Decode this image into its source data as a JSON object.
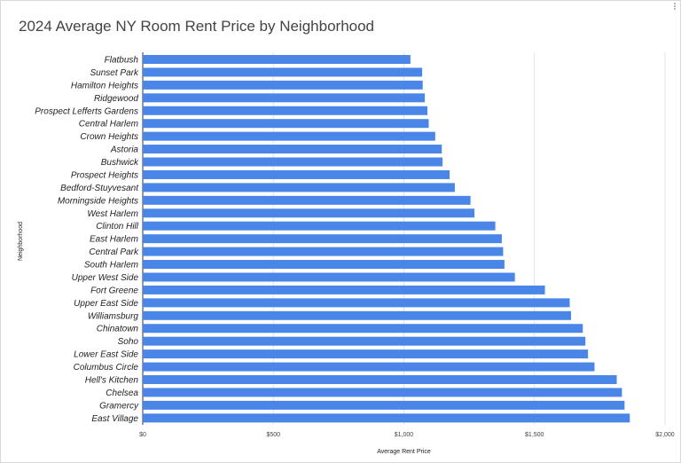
{
  "chart_data": {
    "type": "bar",
    "orientation": "horizontal",
    "title": "2024 Average NY Room Rent Price by Neighborhood",
    "xlabel": "Average Rent Price",
    "ylabel": "Neighborhood",
    "xlim": [
      0,
      2000
    ],
    "xticks": [
      0,
      500,
      1000,
      1500,
      2000
    ],
    "xtick_labels": [
      "$0",
      "$500",
      "$1,000",
      "$1,500",
      "$2,000"
    ],
    "grid": true,
    "legend": "none",
    "bar_color": "#4a86e8",
    "categories": [
      "Flatbush",
      "Sunset Park",
      "Hamilton Heights",
      "Ridgewood",
      "Prospect Lefferts Gardens",
      "Central Harlem",
      "Crown Heights",
      "Astoria",
      "Bushwick",
      "Prospect Heights",
      "Bedford-Stuyvesant",
      "Morningside Heights",
      "West Harlem",
      "Clinton Hill",
      "East Harlem",
      "Central Park",
      "South Harlem",
      "Upper West Side",
      "Fort Greene",
      "Upper East Side",
      "Williamsburg",
      "Chinatown",
      "Soho",
      "Lower East Side",
      "Columbus Circle",
      "Hell's Kitchen",
      "Chelsea",
      "Gramercy",
      "East Village"
    ],
    "values": [
      1025,
      1070,
      1072,
      1080,
      1090,
      1095,
      1120,
      1145,
      1148,
      1175,
      1195,
      1255,
      1270,
      1350,
      1375,
      1380,
      1385,
      1425,
      1540,
      1635,
      1640,
      1685,
      1695,
      1705,
      1730,
      1815,
      1835,
      1845,
      1865
    ]
  }
}
